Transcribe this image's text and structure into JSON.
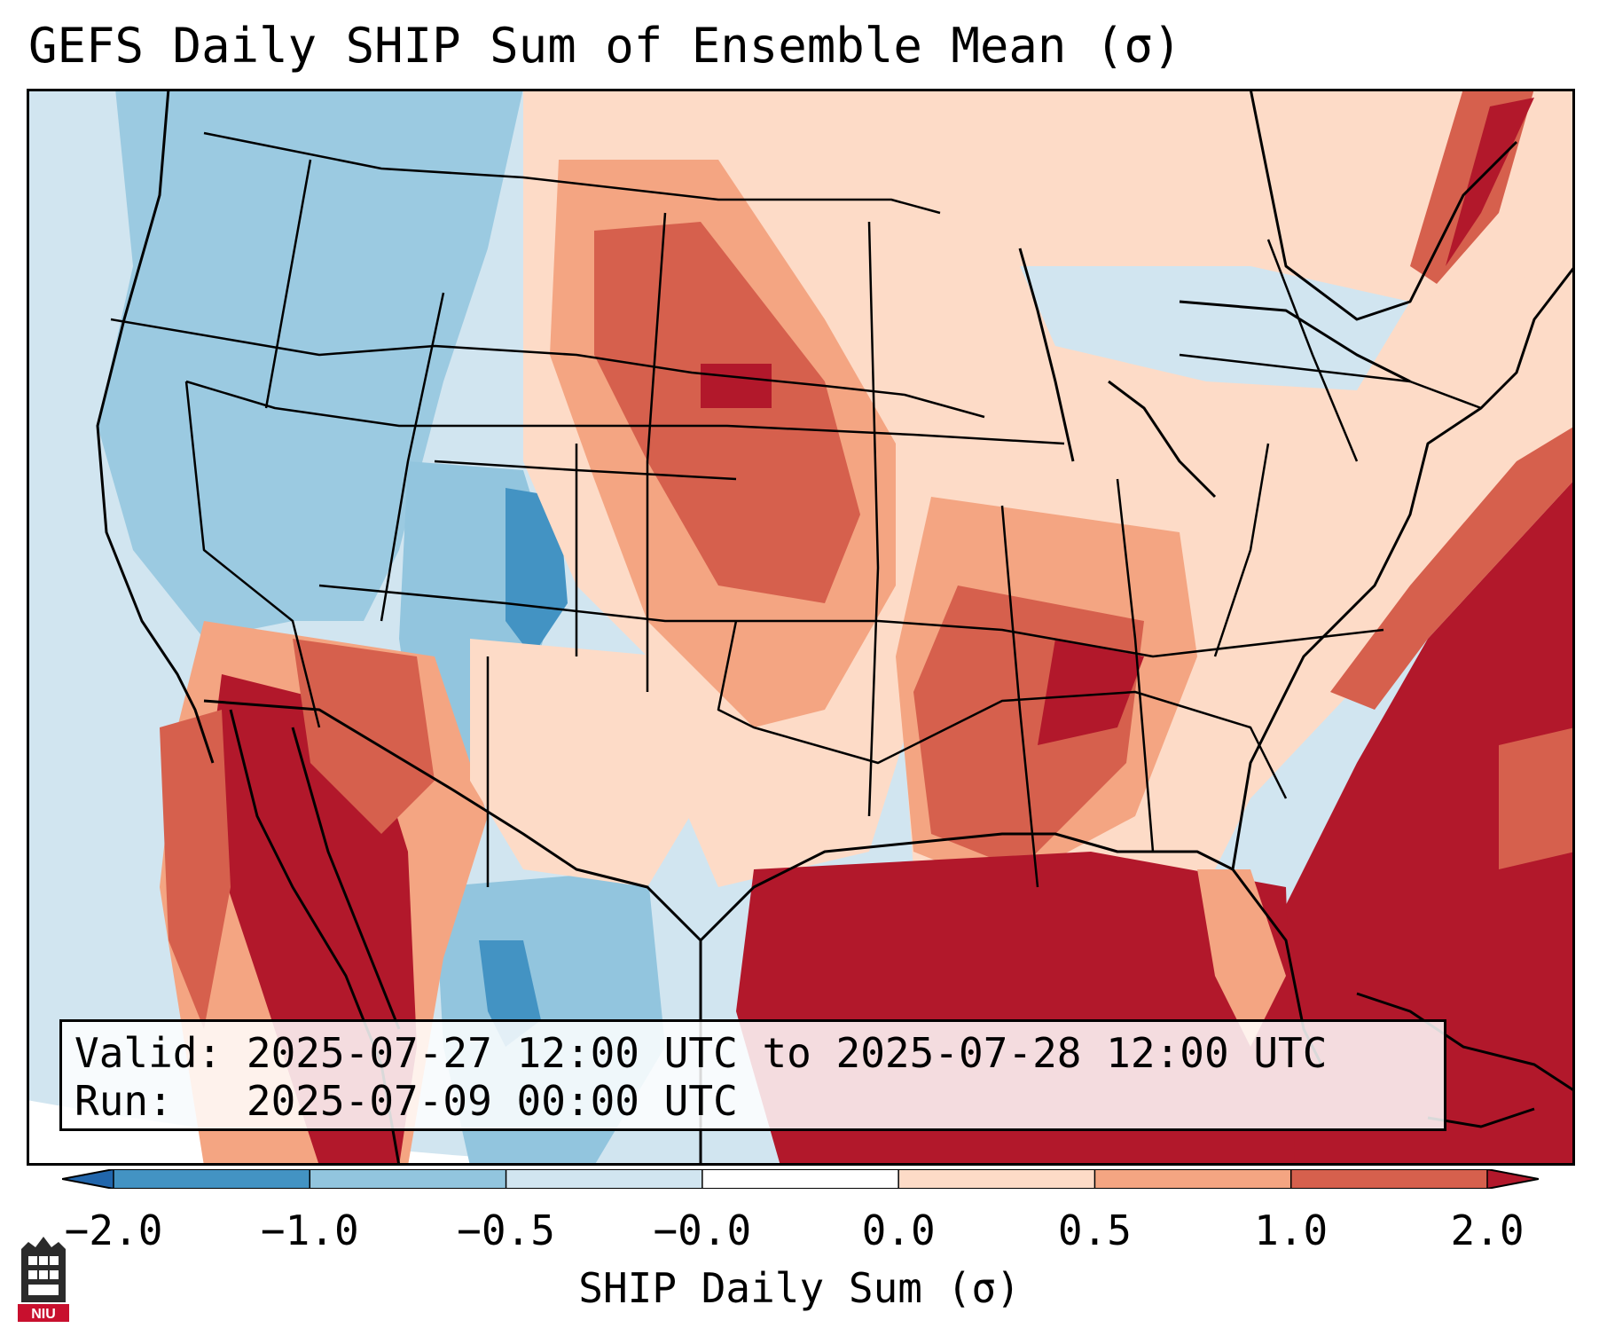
{
  "title": "GEFS Daily SHIP Sum of Ensemble Mean (σ)",
  "info": {
    "valid_label": "Valid:",
    "valid_value": "2025-07-27 12:00 UTC to 2025-07-28 12:00 UTC",
    "run_label": "Run:",
    "run_value": "2025-07-09 00:00 UTC"
  },
  "colorbar": {
    "label": "SHIP Daily Sum (σ)",
    "ticks": [
      "−2.0",
      "−1.0",
      "−0.5",
      "−0.0",
      "0.0",
      "0.5",
      "1.0",
      "2.0"
    ],
    "bins": [
      {
        "range": "< -2.0",
        "color": "#2166ac"
      },
      {
        "range": "-2.0 to -1.0",
        "color": "#4393c3"
      },
      {
        "range": "-1.0 to -0.5",
        "color": "#92c5de"
      },
      {
        "range": "-0.5 to -0.0",
        "color": "#d1e5f0"
      },
      {
        "range": "-0.0 to 0.0",
        "color": "#ffffff"
      },
      {
        "range": "0.0 to 0.5",
        "color": "#fddbc7"
      },
      {
        "range": "0.5 to 1.0",
        "color": "#f4a582"
      },
      {
        "range": "1.0 to 2.0",
        "color": "#d6604d"
      },
      {
        "range": "> 2.0",
        "color": "#b2182b"
      }
    ]
  },
  "logo": {
    "text": "NIU",
    "icon": "niu-tower-logo"
  },
  "map": {
    "projection": "lambert-conformal",
    "region": "CONUS",
    "palette": {
      "ocean_neutral": "#d1e5f0",
      "strong_negative": "#4393c3",
      "weak_negative": "#92c5de",
      "weak_positive": "#fddbc7",
      "moderate_positive": "#f4a582",
      "strong_positive": "#d6604d",
      "extreme_positive": "#b2182b"
    }
  }
}
